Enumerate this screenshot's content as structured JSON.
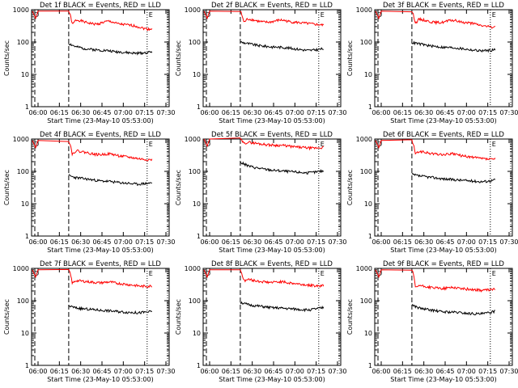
{
  "chart_data": [
    {
      "type": "line",
      "title": "Det 1f BLACK = Events, RED = LLD",
      "xlabel": "Start Time (23-May-10 05:53:00)",
      "ylabel": "Counts/sec",
      "x_ticks": [
        "06:00",
        "06:15",
        "06:30",
        "06:45",
        "07:00",
        "07:15",
        "07:30"
      ],
      "y_ticks": [
        "1",
        "10",
        "100",
        "1000"
      ],
      "ylim": [
        1,
        1000
      ],
      "yscale": "log",
      "series": [
        {
          "color": "#ff0000",
          "values": [
            900,
            340,
            480,
            470,
            430,
            400,
            380,
            360,
            360,
            390,
            420,
            440,
            420,
            380,
            360,
            350,
            340,
            330,
            320,
            300,
            280,
            260,
            250,
            260
          ]
        },
        {
          "color": "#000000",
          "values": [
            90,
            80,
            70,
            68,
            64,
            62,
            60,
            58,
            57,
            56,
            55,
            54,
            52,
            50,
            50,
            48,
            47,
            46,
            45,
            45,
            46,
            47,
            48,
            50
          ]
        }
      ],
      "annotations": {
        "dashed_start": 0.27,
        "dotted_end": 0.84,
        "markers": [
          "D",
          "E"
        ]
      }
    },
    {
      "type": "line",
      "title": "Det 2f BLACK = Events, RED = LLD",
      "xlabel": "Start Time (23-May-10 05:53:00)",
      "ylabel": "Counts/sec",
      "x_ticks": [
        "06:00",
        "06:15",
        "06:30",
        "06:45",
        "07:00",
        "07:15",
        "07:30"
      ],
      "y_ticks": [
        "1",
        "10",
        "100",
        "1000"
      ],
      "ylim": [
        1,
        1000
      ],
      "yscale": "log",
      "series": [
        {
          "color": "#ff0000",
          "values": [
            900,
            400,
            520,
            500,
            470,
            440,
            420,
            410,
            410,
            430,
            460,
            480,
            470,
            440,
            420,
            410,
            400,
            390,
            380,
            370,
            360,
            350,
            340,
            330
          ]
        },
        {
          "color": "#000000",
          "values": [
            100,
            95,
            90,
            86,
            82,
            78,
            76,
            74,
            72,
            70,
            70,
            69,
            68,
            66,
            64,
            62,
            60,
            58,
            56,
            55,
            56,
            58,
            60,
            62
          ]
        }
      ],
      "annotations": {
        "dashed_start": 0.27,
        "dotted_end": 0.84,
        "markers": [
          "D",
          "E"
        ]
      }
    },
    {
      "type": "line",
      "title": "Det 3f BLACK = Events, RED = LLD",
      "xlabel": "Start Time (23-May-10 05:53:00)",
      "ylabel": "Counts/sec",
      "x_ticks": [
        "06:00",
        "06:15",
        "06:30",
        "06:45",
        "07:00",
        "07:15",
        "07:30"
      ],
      "y_ticks": [
        "1",
        "10",
        "100",
        "1000"
      ],
      "ylim": [
        1,
        1000
      ],
      "yscale": "log",
      "series": [
        {
          "color": "#ff0000",
          "values": [
            900,
            380,
            510,
            490,
            460,
            430,
            410,
            400,
            400,
            420,
            450,
            470,
            460,
            430,
            410,
            400,
            390,
            370,
            350,
            330,
            310,
            300,
            290,
            300
          ]
        },
        {
          "color": "#000000",
          "values": [
            95,
            92,
            88,
            84,
            80,
            76,
            74,
            72,
            70,
            68,
            68,
            67,
            66,
            64,
            62,
            60,
            58,
            56,
            55,
            54,
            54,
            55,
            56,
            58
          ]
        }
      ],
      "annotations": {
        "dashed_start": 0.27,
        "dotted_end": 0.84,
        "markers": [
          "D",
          "E"
        ]
      }
    },
    {
      "type": "line",
      "title": "Det 4f BLACK = Events, RED = LLD",
      "xlabel": "Start Time (23-May-10 05:53:00)",
      "ylabel": "Counts/sec",
      "x_ticks": [
        "06:00",
        "06:15",
        "06:30",
        "06:45",
        "07:00",
        "07:15",
        "07:30"
      ],
      "y_ticks": [
        "1",
        "10",
        "100",
        "1000"
      ],
      "ylim": [
        1,
        1000
      ],
      "yscale": "log",
      "series": [
        {
          "color": "#ff0000",
          "values": [
            900,
            330,
            440,
            420,
            400,
            380,
            360,
            340,
            330,
            330,
            340,
            350,
            340,
            320,
            300,
            290,
            280,
            270,
            260,
            250,
            240,
            235,
            230,
            230
          ]
        },
        {
          "color": "#000000",
          "values": [
            75,
            68,
            64,
            62,
            60,
            58,
            56,
            54,
            52,
            50,
            50,
            49,
            48,
            46,
            45,
            44,
            43,
            42,
            41,
            40,
            41,
            42,
            43,
            44
          ]
        }
      ],
      "annotations": {
        "dashed_start": 0.27,
        "dotted_end": 0.84,
        "markers": [
          "D",
          "E"
        ]
      }
    },
    {
      "type": "line",
      "title": "Det 5f BLACK = Events, RED = LLD",
      "xlabel": "Start Time (23-May-10 05:53:00)",
      "ylabel": "Counts/sec",
      "x_ticks": [
        "06:00",
        "06:15",
        "06:30",
        "06:45",
        "07:00",
        "07:15",
        "07:30"
      ],
      "y_ticks": [
        "1",
        "10",
        "100",
        "1000"
      ],
      "ylim": [
        1,
        1000
      ],
      "yscale": "log",
      "series": [
        {
          "color": "#ff0000",
          "values": [
            1000,
            720,
            800,
            780,
            750,
            720,
            700,
            680,
            660,
            650,
            640,
            640,
            630,
            610,
            590,
            570,
            560,
            550,
            540,
            530,
            520,
            530,
            540,
            550
          ]
        },
        {
          "color": "#000000",
          "values": [
            190,
            170,
            150,
            140,
            132,
            126,
            120,
            116,
            112,
            108,
            106,
            104,
            102,
            100,
            98,
            96,
            94,
            92,
            90,
            90,
            92,
            96,
            100,
            104
          ]
        }
      ],
      "annotations": {
        "dashed_start": 0.27,
        "dotted_end": 0.84,
        "markers": [
          "D",
          "E"
        ]
      }
    },
    {
      "type": "line",
      "title": "Det 6f BLACK = Events, RED = LLD",
      "xlabel": "Start Time (23-May-10 05:53:00)",
      "ylabel": "Counts/sec",
      "x_ticks": [
        "06:00",
        "06:15",
        "06:30",
        "06:45",
        "07:00",
        "07:15",
        "07:30"
      ],
      "y_ticks": [
        "1",
        "10",
        "100",
        "1000"
      ],
      "ylim": [
        1,
        1000
      ],
      "yscale": "log",
      "series": [
        {
          "color": "#ff0000",
          "values": [
            900,
            330,
            420,
            400,
            380,
            360,
            350,
            340,
            330,
            330,
            340,
            350,
            340,
            320,
            300,
            290,
            280,
            270,
            260,
            250,
            245,
            240,
            235,
            240
          ]
        },
        {
          "color": "#000000",
          "values": [
            80,
            76,
            72,
            70,
            68,
            66,
            64,
            62,
            60,
            58,
            57,
            56,
            55,
            54,
            53,
            52,
            51,
            50,
            49,
            48,
            49,
            50,
            52,
            55
          ]
        }
      ],
      "annotations": {
        "dashed_start": 0.27,
        "dotted_end": 0.84,
        "markers": [
          "D",
          "E"
        ]
      }
    },
    {
      "type": "line",
      "title": "Det 7f BLACK = Events, RED = LLD",
      "xlabel": "Start Time (23-May-10 05:53:00)",
      "ylabel": "Counts/sec",
      "x_ticks": [
        "06:00",
        "06:15",
        "06:30",
        "06:45",
        "07:00",
        "07:15",
        "07:30"
      ],
      "y_ticks": [
        "1",
        "10",
        "100",
        "1000"
      ],
      "ylim": [
        1,
        1000
      ],
      "yscale": "log",
      "series": [
        {
          "color": "#ff0000",
          "values": [
            900,
            340,
            420,
            410,
            400,
            390,
            380,
            370,
            360,
            360,
            370,
            380,
            370,
            350,
            340,
            330,
            320,
            310,
            300,
            290,
            280,
            280,
            280,
            290
          ]
        },
        {
          "color": "#000000",
          "values": [
            70,
            64,
            60,
            58,
            56,
            55,
            54,
            53,
            52,
            50,
            50,
            49,
            48,
            47,
            46,
            45,
            44,
            44,
            43,
            42,
            43,
            44,
            45,
            46
          ]
        }
      ],
      "annotations": {
        "dashed_start": 0.27,
        "dotted_end": 0.84,
        "markers": [
          "D",
          "E"
        ]
      }
    },
    {
      "type": "line",
      "title": "Det 8f BLACK = Events, RED = LLD",
      "xlabel": "Start Time (23-May-10 05:53:00)",
      "ylabel": "Counts/sec",
      "x_ticks": [
        "06:00",
        "06:15",
        "06:30",
        "06:45",
        "07:00",
        "07:15",
        "07:30"
      ],
      "y_ticks": [
        "1",
        "10",
        "100",
        "1000"
      ],
      "ylim": [
        1,
        1000
      ],
      "yscale": "log",
      "series": [
        {
          "color": "#ff0000",
          "values": [
            900,
            400,
            460,
            440,
            420,
            400,
            390,
            380,
            370,
            370,
            380,
            390,
            380,
            360,
            350,
            340,
            330,
            320,
            310,
            300,
            295,
            290,
            290,
            300
          ]
        },
        {
          "color": "#000000",
          "values": [
            90,
            82,
            76,
            72,
            70,
            68,
            66,
            64,
            62,
            60,
            60,
            59,
            58,
            57,
            56,
            55,
            54,
            53,
            52,
            52,
            54,
            56,
            58,
            62
          ]
        }
      ],
      "annotations": {
        "dashed_start": 0.27,
        "dotted_end": 0.84,
        "markers": [
          "D",
          "E"
        ]
      }
    },
    {
      "type": "line",
      "title": "Det 9f BLACK = Events, RED = LLD",
      "xlabel": "Start Time (23-May-10 05:53:00)",
      "ylabel": "Counts/sec",
      "x_ticks": [
        "06:00",
        "06:15",
        "06:30",
        "06:45",
        "07:00",
        "07:15",
        "07:30"
      ],
      "y_ticks": [
        "1",
        "10",
        "100",
        "1000"
      ],
      "ylim": [
        1,
        1000
      ],
      "yscale": "log",
      "series": [
        {
          "color": "#ff0000",
          "values": [
            900,
            240,
            300,
            280,
            270,
            260,
            250,
            245,
            240,
            240,
            250,
            260,
            255,
            245,
            235,
            230,
            225,
            220,
            215,
            210,
            210,
            215,
            220,
            230
          ]
        },
        {
          "color": "#000000",
          "values": [
            75,
            66,
            60,
            56,
            54,
            52,
            50,
            48,
            46,
            45,
            45,
            44,
            44,
            43,
            42,
            41,
            40,
            40,
            39,
            39,
            40,
            42,
            44,
            48
          ]
        }
      ],
      "annotations": {
        "dashed_start": 0.27,
        "dotted_end": 0.84,
        "markers": [
          "D",
          "E"
        ]
      }
    }
  ]
}
